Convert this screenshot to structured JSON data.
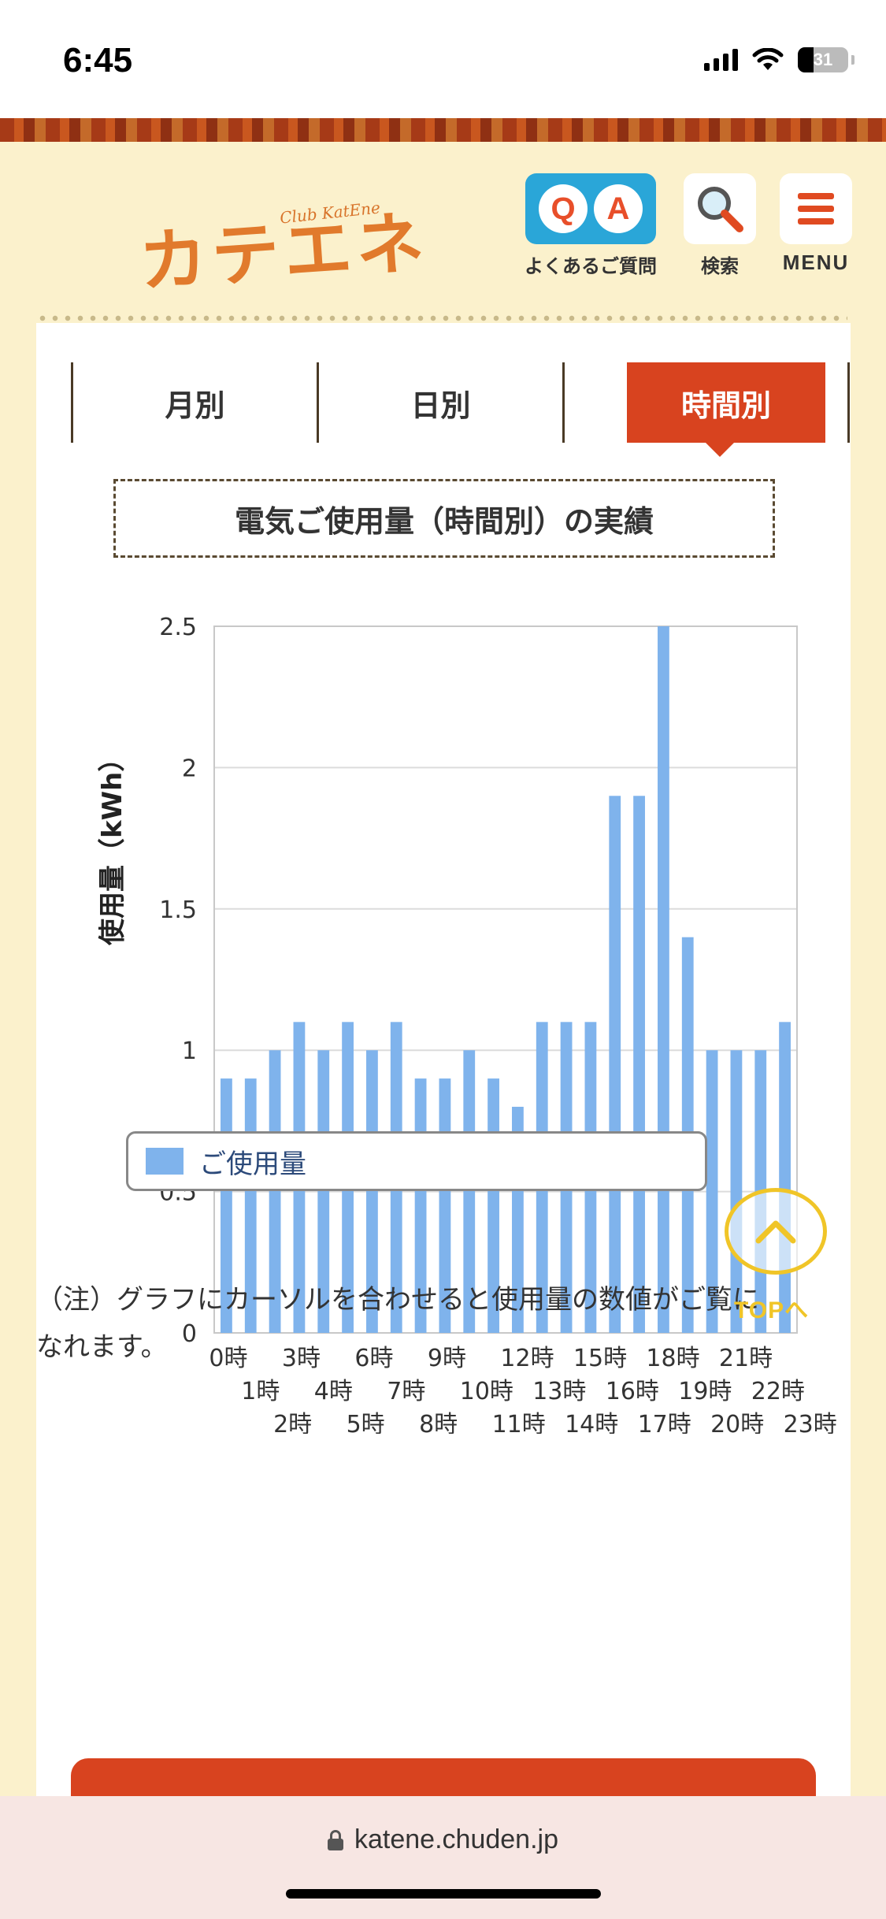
{
  "status_bar": {
    "time": "6:45",
    "battery": "31",
    "icons": [
      "signal-icon",
      "wifi-icon",
      "battery-icon"
    ]
  },
  "header": {
    "logo_sub": "Club KatEne",
    "logo_main": "カテエネ",
    "qa_letters": [
      "Q",
      "A"
    ],
    "faq_label": "よくあるご質問",
    "search_label": "検索",
    "menu_label": "MENU"
  },
  "tabs": [
    {
      "label": "月別",
      "active": false
    },
    {
      "label": "日別",
      "active": false
    },
    {
      "label": "時間別",
      "active": true
    }
  ],
  "section_title": "電気ご使用量（時間別）の実績",
  "chart_data": {
    "type": "bar",
    "categories": [
      "0時",
      "1時",
      "2時",
      "3時",
      "4時",
      "5時",
      "6時",
      "7時",
      "8時",
      "9時",
      "10時",
      "11時",
      "12時",
      "13時",
      "14時",
      "15時",
      "16時",
      "17時",
      "18時",
      "19時",
      "20時",
      "21時",
      "22時",
      "23時"
    ],
    "series": [
      {
        "name": "ご使用量",
        "values": [
          0.9,
          0.9,
          1.0,
          1.1,
          1.0,
          1.1,
          1.0,
          1.1,
          0.9,
          0.9,
          1.0,
          0.9,
          0.8,
          1.1,
          1.1,
          1.1,
          1.9,
          1.9,
          2.5,
          1.4,
          1.0,
          1.0,
          1.0,
          1.1
        ]
      }
    ],
    "ylabel": "使用量（kWh）",
    "ylim": [
      0,
      2.5
    ],
    "yticks": [
      "0",
      "0.5",
      "1",
      "1.5",
      "2",
      "2.5"
    ],
    "grid": true,
    "bar_color": "#7fb3ec",
    "legend_position": "bottom"
  },
  "legend_label": "ご使用量",
  "note": "（注）グラフにカーソルを合わせると使用量の数値がご覧になれます。",
  "top_button_label": "TOPへ",
  "url": "katene.chuden.jp",
  "colors": {
    "accent": "#d8431f",
    "background": "#fbf1cc",
    "qa_blue": "#2aa6d8",
    "top_yellow": "#f0c528"
  }
}
